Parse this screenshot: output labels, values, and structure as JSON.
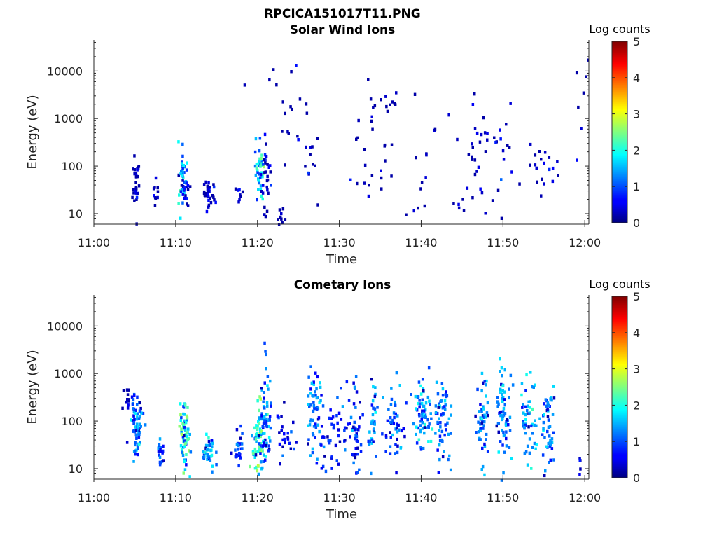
{
  "figure_title": "RPCICA151017T11.PNG",
  "chart_data": [
    {
      "type": "heatmap",
      "id": "solar",
      "title": "Solar Wind Ions",
      "xlabel": "Time",
      "ylabel": "Energy (eV)",
      "x_ticks": [
        "11:00",
        "11:10",
        "11:20",
        "11:30",
        "11:40",
        "11:50",
        "12:00"
      ],
      "y_scale": "log",
      "y_ticks": [
        "10",
        "100",
        "1000",
        "10000"
      ],
      "xlim_minutes": [
        0,
        60.5
      ],
      "ylim": [
        6,
        45000
      ],
      "colorbar": {
        "label": "Log counts",
        "ticks": [
          "0",
          "1",
          "2",
          "3",
          "4",
          "5"
        ],
        "range": [
          0,
          5
        ],
        "colormap": "jet"
      },
      "clusters": [
        {
          "t": 5.0,
          "e": 50,
          "dt": 0.2,
          "de": 0.35,
          "n": 30,
          "v": 0.3
        },
        {
          "t": 7.5,
          "e": 28,
          "dt": 0.2,
          "de": 0.15,
          "n": 10,
          "v": 0.3
        },
        {
          "t": 10.8,
          "e": 80,
          "dt": 0.3,
          "de": 0.35,
          "n": 40,
          "v": 2.0
        },
        {
          "t": 11.0,
          "e": 30,
          "dt": 0.3,
          "de": 0.2,
          "n": 16,
          "v": 0.5
        },
        {
          "t": 14.0,
          "e": 28,
          "dt": 0.4,
          "de": 0.12,
          "n": 30,
          "v": 0.5
        },
        {
          "t": 17.5,
          "e": 28,
          "dt": 0.2,
          "de": 0.1,
          "n": 8,
          "v": 0.4
        },
        {
          "t": 20.0,
          "e": 80,
          "dt": 0.3,
          "de": 0.3,
          "n": 40,
          "v": 2.4
        },
        {
          "t": 20.8,
          "e": 60,
          "dt": 0.3,
          "de": 0.5,
          "n": 30,
          "v": 0.5
        },
        {
          "t": 22.8,
          "e": 8,
          "dt": 0.2,
          "de": 0.15,
          "n": 10,
          "v": 0.3
        },
        {
          "t": 23.5,
          "e": 1500,
          "dt": 1.5,
          "de": 0.8,
          "n": 20,
          "v": 0.2
        },
        {
          "t": 26.5,
          "e": 150,
          "dt": 0.5,
          "de": 0.3,
          "n": 12,
          "v": 0.3
        },
        {
          "t": 34.0,
          "e": 150,
          "dt": 1.5,
          "de": 0.6,
          "n": 25,
          "v": 0.3
        },
        {
          "t": 35.5,
          "e": 3000,
          "dt": 1.0,
          "de": 0.3,
          "n": 10,
          "v": 0.2
        },
        {
          "t": 40.0,
          "e": 120,
          "dt": 0.8,
          "de": 0.7,
          "n": 15,
          "v": 0.3
        },
        {
          "t": 47.5,
          "e": 180,
          "dt": 2.5,
          "de": 0.8,
          "n": 50,
          "v": 0.4
        },
        {
          "t": 54.5,
          "e": 80,
          "dt": 1.5,
          "de": 0.3,
          "n": 20,
          "v": 0.4
        },
        {
          "t": 59.5,
          "e": 3000,
          "dt": 0.4,
          "de": 0.6,
          "n": 6,
          "v": 0.2
        }
      ]
    },
    {
      "type": "heatmap",
      "id": "cometary",
      "title": "Cometary Ions",
      "xlabel": "Time",
      "ylabel": "Energy (eV)",
      "x_ticks": [
        "11:00",
        "11:10",
        "11:20",
        "11:30",
        "11:40",
        "11:50",
        "12:00"
      ],
      "y_scale": "log",
      "y_ticks": [
        "10",
        "100",
        "1000",
        "10000"
      ],
      "xlim_minutes": [
        0,
        60.5
      ],
      "ylim": [
        6,
        45000
      ],
      "colorbar": {
        "label": "Log counts",
        "ticks": [
          "0",
          "1",
          "2",
          "3",
          "4",
          "5"
        ],
        "range": [
          0,
          5
        ],
        "colormap": "jet"
      },
      "clusters": [
        {
          "t": 4.0,
          "e": 350,
          "dt": 0.3,
          "de": 0.2,
          "n": 12,
          "v": 0.3
        },
        {
          "t": 5.0,
          "e": 80,
          "dt": 0.4,
          "de": 0.4,
          "n": 70,
          "v": 1.6
        },
        {
          "t": 8.0,
          "e": 25,
          "dt": 0.2,
          "de": 0.2,
          "n": 18,
          "v": 1.2
        },
        {
          "t": 11.0,
          "e": 50,
          "dt": 0.35,
          "de": 0.35,
          "n": 70,
          "v": 2.5
        },
        {
          "t": 14.0,
          "e": 25,
          "dt": 0.4,
          "de": 0.15,
          "n": 40,
          "v": 1.8
        },
        {
          "t": 17.5,
          "e": 30,
          "dt": 0.35,
          "de": 0.2,
          "n": 25,
          "v": 1.2
        },
        {
          "t": 20.0,
          "e": 60,
          "dt": 0.4,
          "de": 0.35,
          "n": 70,
          "v": 2.6
        },
        {
          "t": 20.8,
          "e": 100,
          "dt": 0.4,
          "de": 0.5,
          "n": 60,
          "v": 1.6
        },
        {
          "t": 23.0,
          "e": 50,
          "dt": 0.6,
          "de": 0.3,
          "n": 25,
          "v": 0.8
        },
        {
          "t": 26.8,
          "e": 150,
          "dt": 0.5,
          "de": 0.5,
          "n": 60,
          "v": 1.6
        },
        {
          "t": 29.5,
          "e": 50,
          "dt": 1.0,
          "de": 0.35,
          "n": 50,
          "v": 1.0
        },
        {
          "t": 32.0,
          "e": 80,
          "dt": 0.4,
          "de": 0.5,
          "n": 40,
          "v": 1.0
        },
        {
          "t": 34.0,
          "e": 80,
          "dt": 0.3,
          "de": 0.4,
          "n": 30,
          "v": 1.7
        },
        {
          "t": 36.5,
          "e": 80,
          "dt": 0.8,
          "de": 0.4,
          "n": 50,
          "v": 1.3
        },
        {
          "t": 40.0,
          "e": 150,
          "dt": 0.5,
          "de": 0.4,
          "n": 70,
          "v": 1.8
        },
        {
          "t": 42.5,
          "e": 120,
          "dt": 0.6,
          "de": 0.45,
          "n": 60,
          "v": 1.5
        },
        {
          "t": 47.5,
          "e": 100,
          "dt": 0.4,
          "de": 0.45,
          "n": 50,
          "v": 1.6
        },
        {
          "t": 49.8,
          "e": 150,
          "dt": 0.5,
          "de": 0.5,
          "n": 70,
          "v": 1.8
        },
        {
          "t": 53.0,
          "e": 100,
          "dt": 0.5,
          "de": 0.45,
          "n": 50,
          "v": 1.8
        },
        {
          "t": 55.5,
          "e": 80,
          "dt": 0.4,
          "de": 0.45,
          "n": 50,
          "v": 1.6
        },
        {
          "t": 59.3,
          "e": 14,
          "dt": 0.05,
          "de": 0.1,
          "n": 5,
          "v": 0.6
        }
      ]
    }
  ]
}
